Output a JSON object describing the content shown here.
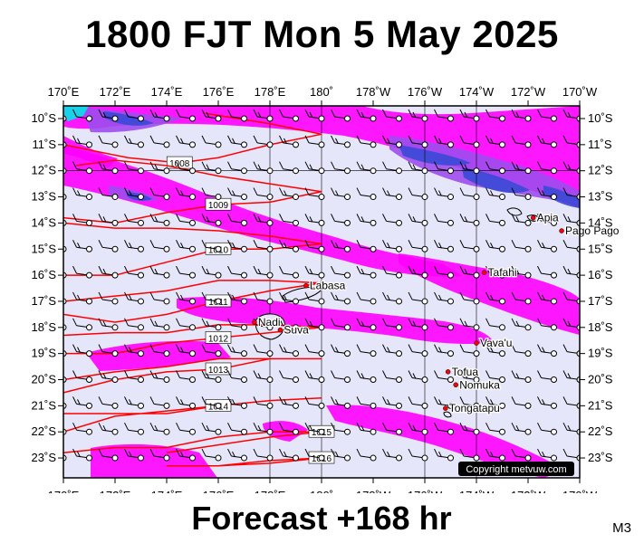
{
  "title": "1800 FJT Mon 5 May 2025",
  "footer": "Forecast +168 hr",
  "model_code": "M3",
  "copyright": "Copyright metvuw.com",
  "colors": {
    "background": "#e6e6fa",
    "rain_light": "#ff00ff",
    "rain_medium": "#9d4ded",
    "rain_heavy": "#3a49d6",
    "isobar": "#ff0000",
    "wind": "#000000",
    "city": "#ff0000"
  },
  "map": {
    "lon_labels": [
      "170˚E",
      "172˚E",
      "174˚E",
      "176˚E",
      "178˚E",
      "180˚",
      "178˚W",
      "176˚W",
      "174˚W",
      "172˚W",
      "170˚W"
    ],
    "lat_labels": [
      "10˚S",
      "11˚S",
      "12˚S",
      "13˚S",
      "14˚S",
      "15˚S",
      "16˚S",
      "17˚S",
      "18˚S",
      "19˚S",
      "20˚S",
      "21˚S",
      "22˚S",
      "23˚S"
    ],
    "cities": [
      {
        "name": "Apia",
        "lon": -171.8,
        "lat": -13.8
      },
      {
        "name": "Pago Pago",
        "lon": -170.7,
        "lat": -14.3
      },
      {
        "name": "Tafahi",
        "lon": -173.7,
        "lat": -15.9
      },
      {
        "name": "Labasa",
        "lon": 179.4,
        "lat": -16.4
      },
      {
        "name": "Nadi",
        "lon": 177.4,
        "lat": -17.8
      },
      {
        "name": "Suva",
        "lon": 178.4,
        "lat": -18.1
      },
      {
        "name": "Vava'u",
        "lon": -174.0,
        "lat": -18.6
      },
      {
        "name": "Tofua",
        "lon": -175.1,
        "lat": -19.7
      },
      {
        "name": "Nomuka",
        "lon": -174.8,
        "lat": -20.2
      },
      {
        "name": "Tongatapu",
        "lon": -175.2,
        "lat": -21.1
      }
    ],
    "isobars": [
      {
        "label": "1008",
        "points": [
          [
            170.0,
            -11.0
          ],
          [
            172.5,
            -11.5
          ],
          [
            174.5,
            -11.7
          ],
          [
            176.0,
            -11.5
          ],
          [
            178.0,
            -11.0
          ],
          [
            180.0,
            -10.6
          ],
          [
            178.0,
            -10.2
          ],
          [
            175.5,
            -9.8
          ]
        ]
      },
      {
        "label": "1009",
        "points": [
          [
            170.0,
            -13.8
          ],
          [
            172.0,
            -14.0
          ],
          [
            174.0,
            -13.6
          ],
          [
            176.0,
            -13.3
          ],
          [
            178.0,
            -13.2
          ],
          [
            180.0,
            -12.8
          ],
          [
            178.0,
            -12.5
          ],
          [
            176.0,
            -12.2
          ],
          [
            174.0,
            -11.8
          ],
          [
            172.0,
            -11.6
          ],
          [
            170.5,
            -11.8
          ]
        ]
      },
      {
        "label": "1010",
        "points": [
          [
            170.0,
            -16.0
          ],
          [
            172.0,
            -16.0
          ],
          [
            174.0,
            -15.5
          ],
          [
            176.0,
            -15.0
          ],
          [
            178.0,
            -15.0
          ],
          [
            180.0,
            -14.8
          ],
          [
            178.0,
            -14.5
          ],
          [
            176.0,
            -14.3
          ],
          [
            174.0,
            -14.2
          ],
          [
            172.0,
            -14.2
          ],
          [
            170.0,
            -14.0
          ]
        ]
      },
      {
        "label": "1011",
        "points": [
          [
            170.0,
            -17.5
          ],
          [
            172.0,
            -17.8
          ],
          [
            174.0,
            -17.5
          ],
          [
            176.0,
            -17.0
          ],
          [
            178.0,
            -16.6
          ],
          [
            180.0,
            -16.3
          ],
          [
            178.0,
            -16.2
          ],
          [
            176.0,
            -16.2
          ],
          [
            174.0,
            -16.6
          ],
          [
            172.0,
            -16.8
          ],
          [
            170.0,
            -17.0
          ]
        ]
      },
      {
        "label": "1012",
        "points": [
          [
            170.0,
            -19.0
          ],
          [
            172.0,
            -19.0
          ],
          [
            174.0,
            -18.6
          ],
          [
            176.0,
            -18.4
          ],
          [
            178.0,
            -18.2
          ],
          [
            180.0,
            -18.0
          ],
          [
            178.0,
            -17.9
          ],
          [
            176.0,
            -17.9
          ],
          [
            174.0,
            -18.2
          ],
          [
            172.0,
            -18.2
          ],
          [
            170.0,
            -18.3
          ]
        ]
      },
      {
        "label": "1013",
        "points": [
          [
            170.0,
            -20.5
          ],
          [
            172.0,
            -20.0
          ],
          [
            174.0,
            -19.7
          ],
          [
            176.0,
            -19.6
          ],
          [
            178.0,
            -19.2
          ],
          [
            180.0,
            -19.2
          ],
          [
            178.0,
            -19.2
          ],
          [
            176.0,
            -19.2
          ],
          [
            174.0,
            -19.5
          ],
          [
            172.0,
            -19.7
          ],
          [
            170.0,
            -20.0
          ]
        ]
      },
      {
        "label": "1014",
        "points": [
          [
            170.0,
            -22.0
          ],
          [
            172.0,
            -21.4
          ],
          [
            174.0,
            -21.2
          ],
          [
            176.0,
            -21.0
          ],
          [
            178.0,
            -20.8
          ],
          [
            180.0,
            -20.7
          ],
          [
            178.0,
            -20.8
          ],
          [
            176.0,
            -21.0
          ],
          [
            174.0,
            -21.3
          ],
          [
            172.0,
            -21.3
          ],
          [
            170.0,
            -21.3
          ]
        ]
      },
      {
        "label": "1015",
        "points": [
          [
            174.0,
            -22.8
          ],
          [
            176.0,
            -22.5
          ],
          [
            178.0,
            -22.2
          ],
          [
            180.0,
            -22.0
          ],
          [
            178.0,
            -22.0
          ],
          [
            176.0,
            -22.2
          ],
          [
            174.0,
            -22.6
          ],
          [
            172.0,
            -22.6
          ],
          [
            170.0,
            -22.8
          ]
        ]
      },
      {
        "label": "1016",
        "points": [
          [
            176.0,
            -23.3
          ],
          [
            178.0,
            -23.2
          ],
          [
            180.0,
            -23.0
          ],
          [
            178.0,
            -23.1
          ],
          [
            176.0,
            -23.3
          ],
          [
            174.0,
            -23.3
          ]
        ]
      }
    ]
  }
}
